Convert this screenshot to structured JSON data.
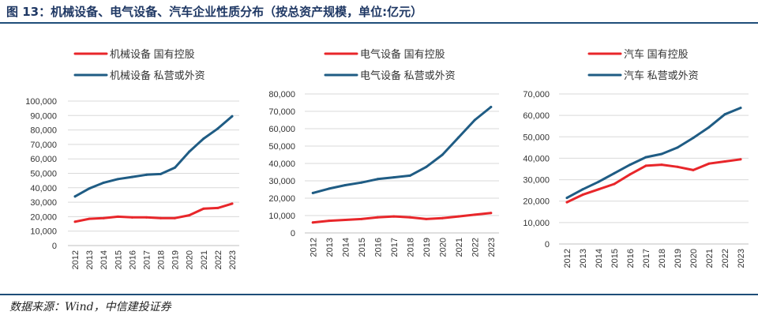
{
  "figure": {
    "title": "图 13：机械设备、电气设备、汽车企业性质分布（按总资产规模，单位:亿元）",
    "source": "数据来源：Wind，中信建投证券"
  },
  "colors": {
    "state": "#e8262a",
    "private": "#1f5c84",
    "grid": "#d9d9d9",
    "axis": "#bfbfbf",
    "text": "#333333",
    "rule": "#1f4e79"
  },
  "chart_data": [
    {
      "type": "line",
      "categories": [
        "2012",
        "2013",
        "2014",
        "2015",
        "2016",
        "2017",
        "2018",
        "2019",
        "2020",
        "2021",
        "2022",
        "2023"
      ],
      "ylim": [
        0,
        100000
      ],
      "yticks": [
        "0",
        "10,000",
        "20,000",
        "30,000",
        "40,000",
        "50,000",
        "60,000",
        "70,000",
        "80,000",
        "90,000",
        "100,000"
      ],
      "grid": true,
      "legend_position": "top-left",
      "series": [
        {
          "name": "机械设备 国有控股",
          "color": "#e8262a",
          "values": [
            16500,
            18500,
            19000,
            20000,
            19500,
            19500,
            19000,
            19000,
            21000,
            25500,
            26000,
            29000
          ]
        },
        {
          "name": "机械设备 私营或外资",
          "color": "#1f5c84",
          "values": [
            34000,
            39500,
            43500,
            46000,
            47500,
            49000,
            49500,
            54000,
            65000,
            74000,
            81000,
            89500
          ]
        }
      ]
    },
    {
      "type": "line",
      "categories": [
        "2012",
        "2013",
        "2014",
        "2015",
        "2016",
        "2017",
        "2018",
        "2019",
        "2020",
        "2021",
        "2022",
        "2023"
      ],
      "ylim": [
        0,
        80000
      ],
      "yticks": [
        "0",
        "10,000",
        "20,000",
        "30,000",
        "40,000",
        "50,000",
        "60,000",
        "70,000",
        "80,000"
      ],
      "grid": true,
      "legend_position": "top-left",
      "series": [
        {
          "name": "电气设备 国有控股",
          "color": "#e8262a",
          "values": [
            6000,
            7000,
            7500,
            8000,
            9000,
            9500,
            9000,
            8000,
            8500,
            9500,
            10500,
            11500
          ]
        },
        {
          "name": "电气设备 私营或外资",
          "color": "#1f5c84",
          "values": [
            23000,
            25500,
            27500,
            29000,
            31000,
            32000,
            33000,
            38000,
            45000,
            55000,
            65000,
            72500
          ]
        }
      ]
    },
    {
      "type": "line",
      "categories": [
        "2012",
        "2013",
        "2014",
        "2015",
        "2016",
        "2017",
        "2018",
        "2019",
        "2020",
        "2021",
        "2022",
        "2023"
      ],
      "ylim": [
        0,
        70000
      ],
      "yticks": [
        "0",
        "10,000",
        "20,000",
        "30,000",
        "40,000",
        "50,000",
        "60,000",
        "70,000"
      ],
      "grid": true,
      "legend_position": "top-left",
      "series": [
        {
          "name": "汽车 国有控股",
          "color": "#e8262a",
          "values": [
            19500,
            23000,
            25500,
            28000,
            32500,
            36500,
            37000,
            36000,
            34500,
            37500,
            38500,
            39500
          ]
        },
        {
          "name": "汽车 私营或外资",
          "color": "#1f5c84",
          "values": [
            21500,
            25500,
            29000,
            33000,
            37000,
            40500,
            42000,
            45000,
            49500,
            54500,
            60500,
            63500
          ]
        }
      ]
    }
  ]
}
